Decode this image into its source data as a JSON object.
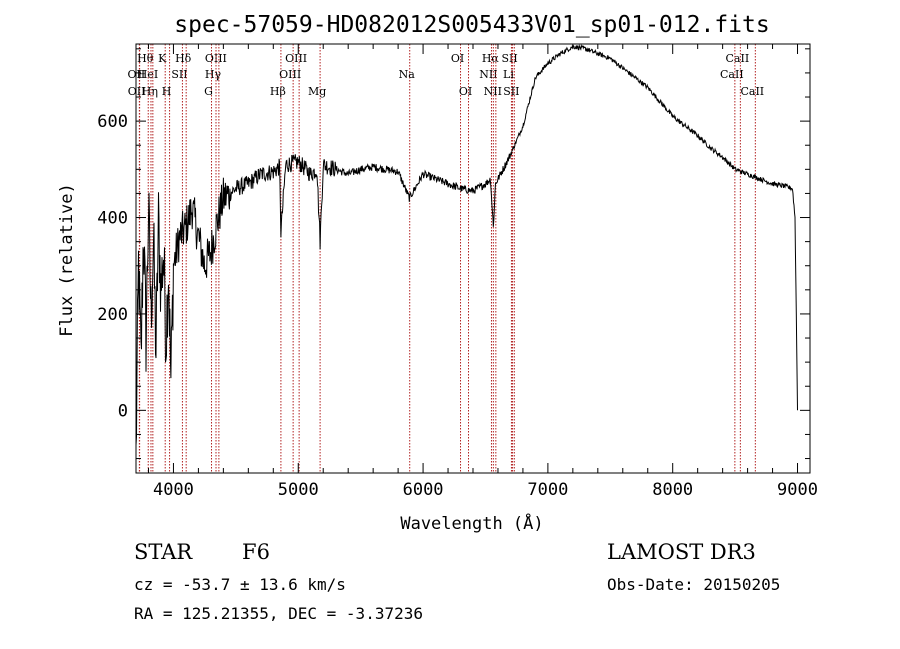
{
  "chart_data": {
    "type": "line",
    "title": "spec-57059-HD082012S005433V01_sp01-012.fits",
    "xlabel": "Wavelength (Å)",
    "ylabel": "Flux (relative)",
    "xlim": [
      3700,
      9100
    ],
    "ylim": [
      -130,
      760
    ],
    "xticks": [
      4000,
      5000,
      6000,
      7000,
      8000,
      9000
    ],
    "yticks": [
      0,
      200,
      400,
      600
    ],
    "series": [
      {
        "name": "spectrum",
        "x": [
          3700,
          3720,
          3740,
          3760,
          3780,
          3800,
          3820,
          3840,
          3860,
          3880,
          3900,
          3920,
          3940,
          3960,
          3980,
          4000,
          4050,
          4100,
          4150,
          4200,
          4250,
          4300,
          4350,
          4400,
          4500,
          4600,
          4700,
          4800,
          4850,
          4861,
          4900,
          5000,
          5100,
          5150,
          5175,
          5200,
          5300,
          5400,
          5500,
          5600,
          5700,
          5800,
          5890,
          6000,
          6100,
          6200,
          6300,
          6400,
          6500,
          6540,
          6563,
          6580,
          6600,
          6700,
          6800,
          6900,
          7000,
          7100,
          7200,
          7300,
          7400,
          7500,
          7600,
          7700,
          7800,
          7900,
          8000,
          8100,
          8200,
          8300,
          8400,
          8500,
          8600,
          8700,
          8800,
          8900,
          8960,
          8980,
          8990,
          9000
        ],
        "y": [
          -100,
          300,
          100,
          380,
          150,
          420,
          200,
          350,
          120,
          390,
          250,
          330,
          150,
          300,
          60,
          300,
          360,
          380,
          420,
          360,
          300,
          330,
          390,
          440,
          460,
          470,
          490,
          495,
          505,
          370,
          510,
          515,
          490,
          500,
          350,
          510,
          500,
          490,
          500,
          505,
          500,
          495,
          440,
          490,
          480,
          470,
          460,
          455,
          470,
          480,
          380,
          470,
          480,
          530,
          590,
          690,
          720,
          740,
          755,
          750,
          740,
          730,
          710,
          690,
          670,
          640,
          610,
          590,
          570,
          545,
          525,
          500,
          490,
          480,
          470,
          465,
          460,
          400,
          200,
          0
        ]
      }
    ],
    "spectral_lines": [
      {
        "name": "OII",
        "wave": 3727,
        "row": 2
      },
      {
        "name": "OII",
        "wave": 3729,
        "row": 3
      },
      {
        "name": "Hθ",
        "wave": 3798,
        "row": 1
      },
      {
        "name": "HeI",
        "wave": 3820,
        "row": 2
      },
      {
        "name": "Hη",
        "wave": 3835,
        "row": 3
      },
      {
        "name": "K",
        "wave": 3934,
        "row": 1
      },
      {
        "name": "SII",
        "wave": 4072,
        "row": 2
      },
      {
        "name": "H",
        "wave": 3969,
        "row": 3
      },
      {
        "name": "Hδ",
        "wave": 4102,
        "row": 1
      },
      {
        "name": "OIII",
        "wave": 4364,
        "row": 1
      },
      {
        "name": "Hγ",
        "wave": 4341,
        "row": 2
      },
      {
        "name": "G",
        "wave": 4305,
        "row": 3
      },
      {
        "name": "Hβ",
        "wave": 4861,
        "row": 3
      },
      {
        "name": "OIII",
        "wave": 5007,
        "row": 1
      },
      {
        "name": "OIII",
        "wave": 4959,
        "row": 2
      },
      {
        "name": "Mg",
        "wave": 5175,
        "row": 3
      },
      {
        "name": "Na",
        "wave": 5893,
        "row": 2
      },
      {
        "name": "OI",
        "wave": 6300,
        "row": 1
      },
      {
        "name": "OI",
        "wave": 6364,
        "row": 3
      },
      {
        "name": "Hα",
        "wave": 6563,
        "row": 1
      },
      {
        "name": "NII",
        "wave": 6548,
        "row": 2
      },
      {
        "name": "NII",
        "wave": 6583,
        "row": 3
      },
      {
        "name": "SII",
        "wave": 6717,
        "row": 1
      },
      {
        "name": "Li",
        "wave": 6708,
        "row": 2
      },
      {
        "name": "SII",
        "wave": 6731,
        "row": 3
      },
      {
        "name": "CaII",
        "wave": 8542,
        "row": 1
      },
      {
        "name": "CaII",
        "wave": 8498,
        "row": 2
      },
      {
        "name": "CaII",
        "wave": 8662,
        "row": 3
      }
    ]
  },
  "info": {
    "object_class": "STAR",
    "subclass": "F6",
    "survey": "LAMOST DR3",
    "cz": "cz = -53.7 ± 13.6 km/s",
    "obs_date": "Obs-Date: 20150205",
    "coords": "RA = 125.21355, DEC =  -3.37236"
  },
  "colors": {
    "line_marker": "#b22222",
    "spectrum": "#000000"
  }
}
